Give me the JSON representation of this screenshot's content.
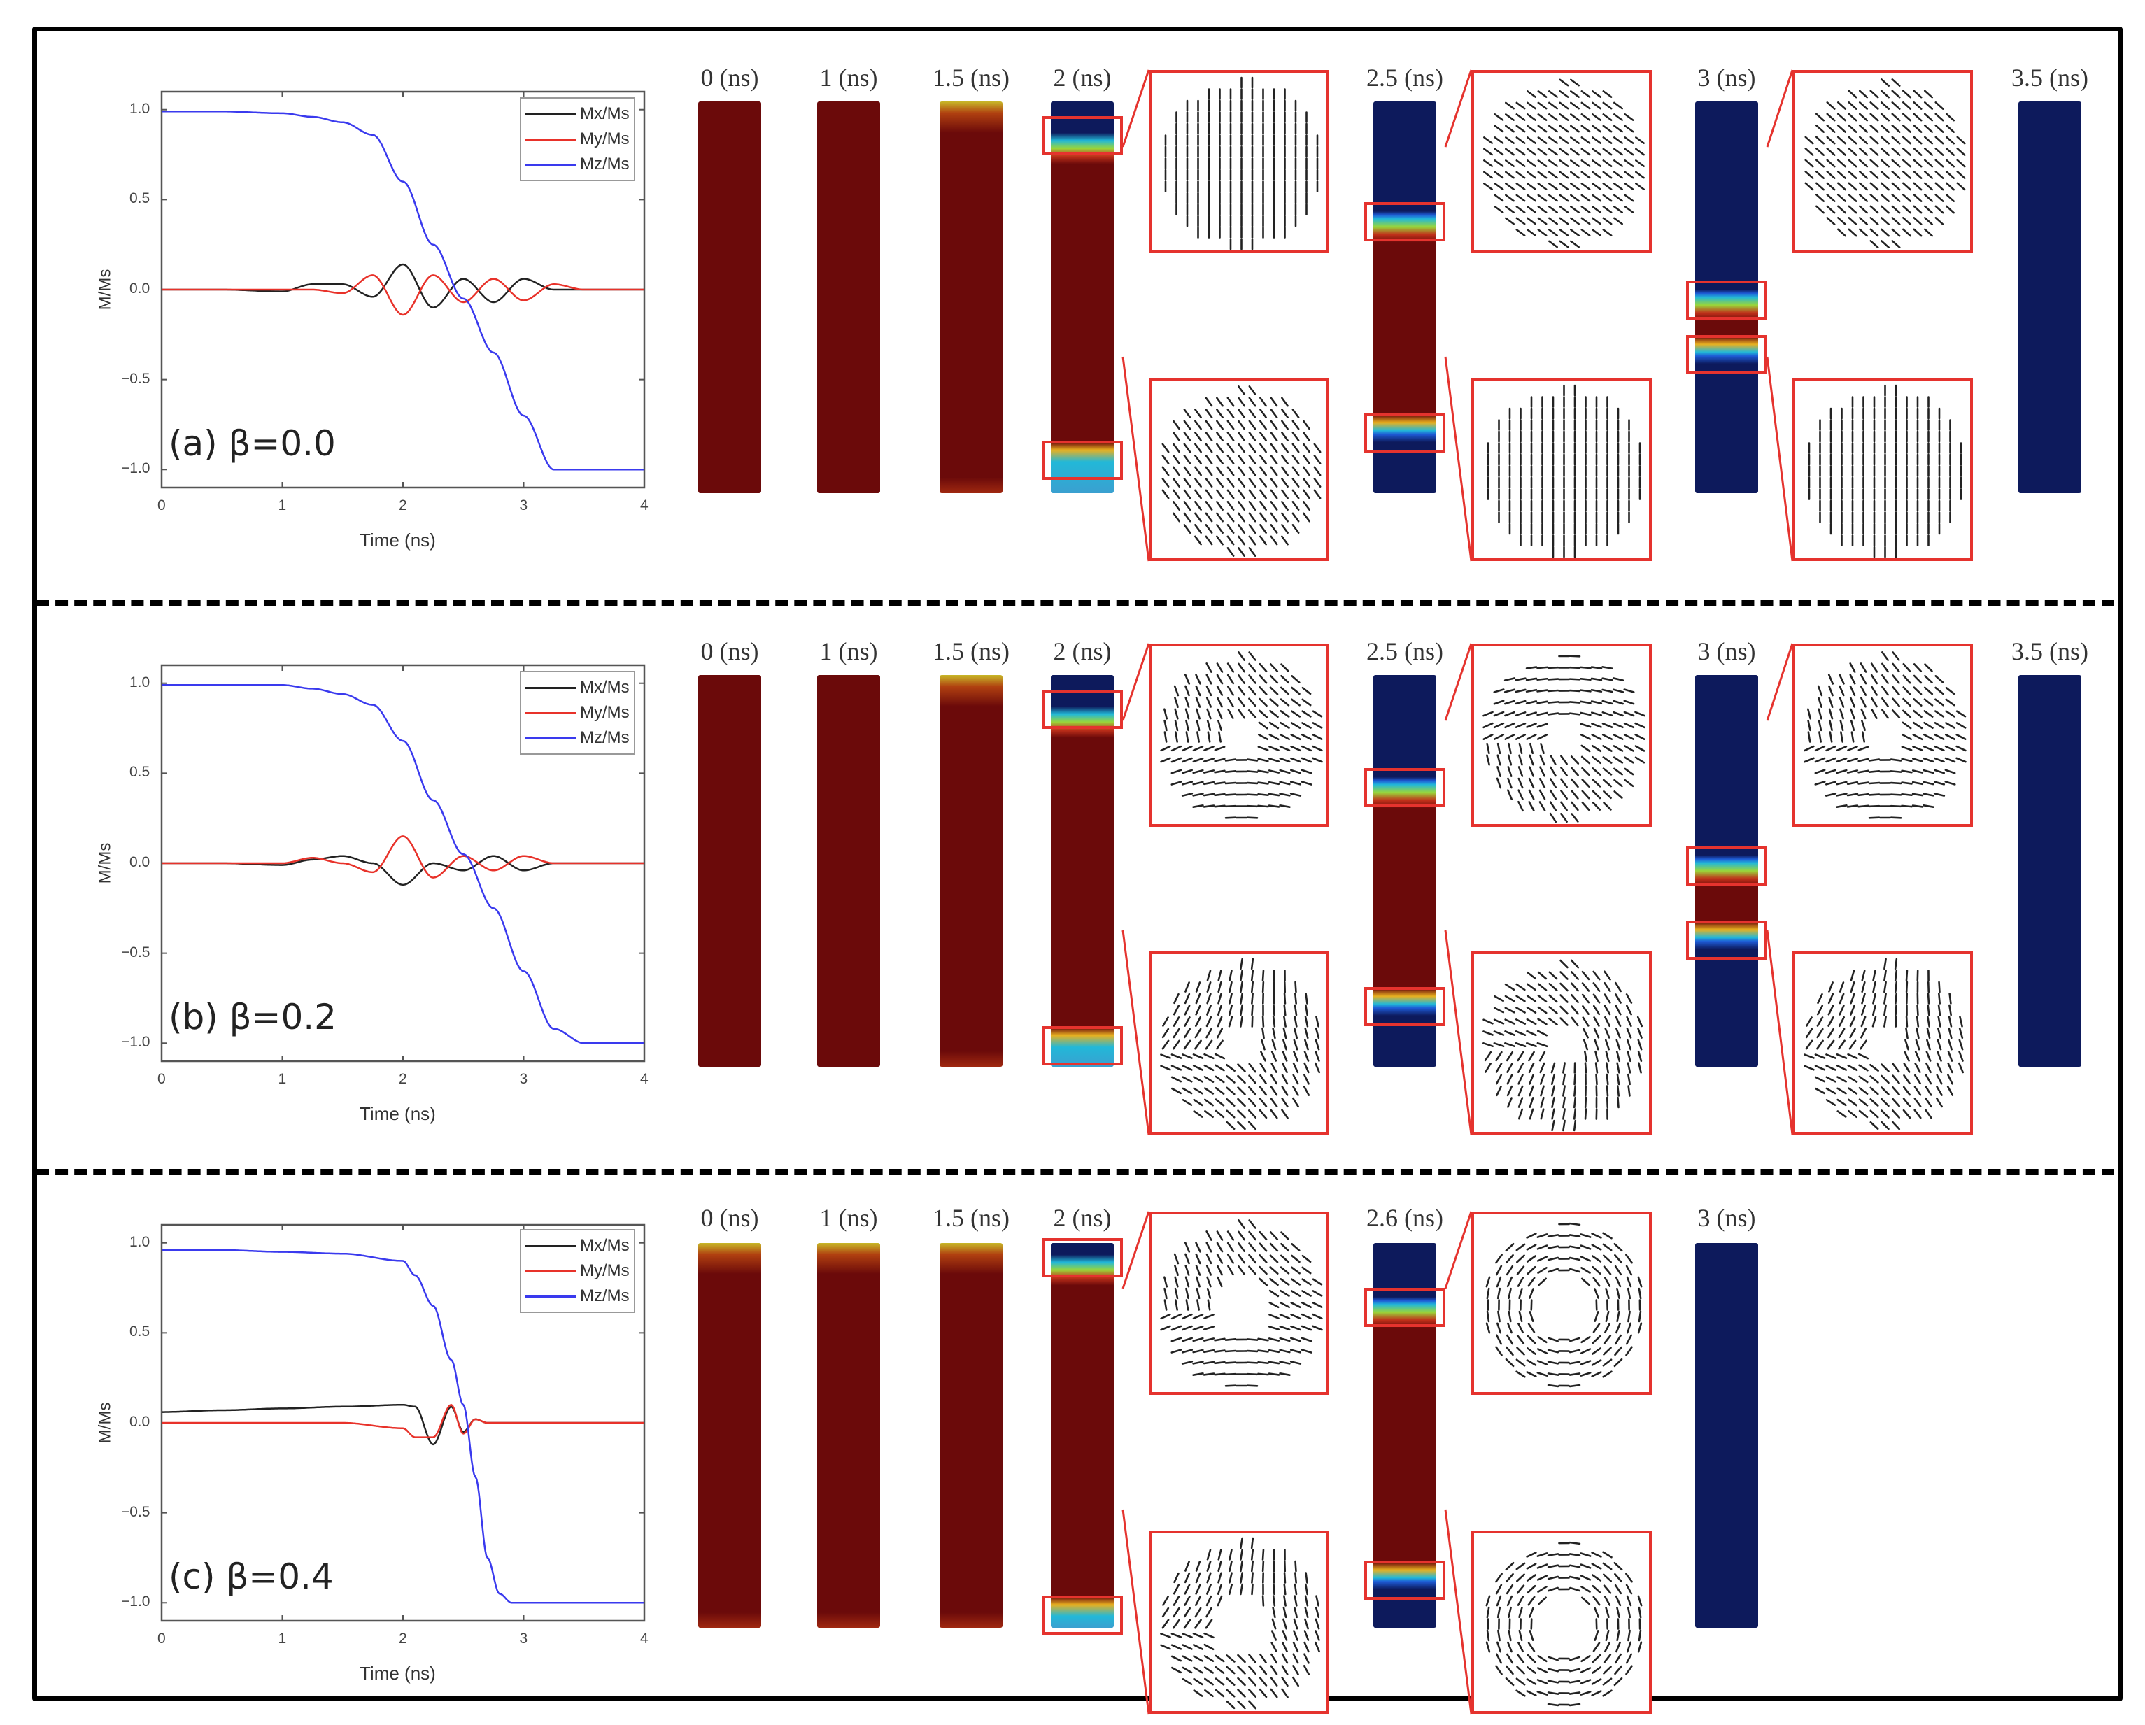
{
  "figure": {
    "colors": {
      "frame": "#000000",
      "inset_border": "#e5332e",
      "wire_red": "#6b0a0a",
      "wire_blue": "#0d1a5c",
      "mx": "#222222",
      "my": "#e8322a",
      "mz": "#3a3aee"
    },
    "rows": [
      {
        "id": "a",
        "panel_label": "(a) β=0.0",
        "ylabel": "M/Ms",
        "xlabel": "Time (ns)",
        "snapshots": [
          "0 (ns)",
          "1 (ns)",
          "1.5 (ns)",
          "2 (ns)",
          "2.5 (ns)",
          "3 (ns)",
          "3.5 (ns)"
        ]
      },
      {
        "id": "b",
        "panel_label": "(b) β=0.2",
        "ylabel": "M/Ms",
        "xlabel": "Time (ns)",
        "snapshots": [
          "0 (ns)",
          "1 (ns)",
          "1.5 (ns)",
          "2 (ns)",
          "2.5 (ns)",
          "3 (ns)",
          "3.5 (ns)"
        ]
      },
      {
        "id": "c",
        "panel_label": "(c) β=0.4",
        "ylabel": "M/Ms",
        "xlabel": "Time (ns)",
        "snapshots": [
          "0 (ns)",
          "1 (ns)",
          "1.5 (ns)",
          "2 (ns)",
          "2.6 (ns)",
          "3 (ns)"
        ]
      }
    ],
    "legend": [
      "Mx/Ms",
      "My/Ms",
      "Mz/Ms"
    ],
    "xticks": [
      "0",
      "1",
      "2",
      "3",
      "4"
    ],
    "yticks": [
      "1.0",
      "0.5",
      "0.0",
      "-0.5",
      "-1.0"
    ]
  },
  "chart_data": [
    {
      "type": "line",
      "title": "(a) β=0.0",
      "xlabel": "Time (ns)",
      "ylabel": "M/Ms",
      "xlim": [
        0,
        4
      ],
      "ylim": [
        -1.1,
        1.1
      ],
      "legend_position": "upper right",
      "x": [
        0,
        0.5,
        1.0,
        1.25,
        1.5,
        1.75,
        2.0,
        2.25,
        2.5,
        2.75,
        3.0,
        3.25,
        3.5,
        4.0
      ],
      "series": [
        {
          "name": "Mx/Ms",
          "values": [
            0,
            0,
            -0.01,
            0.03,
            0.03,
            -0.04,
            0.14,
            -0.1,
            0.06,
            -0.07,
            0.06,
            0.0,
            0,
            0
          ]
        },
        {
          "name": "My/Ms",
          "values": [
            0,
            0,
            0.0,
            0.0,
            -0.02,
            0.08,
            -0.14,
            0.08,
            -0.07,
            0.06,
            -0.06,
            0.03,
            0,
            0
          ]
        },
        {
          "name": "Mz/Ms",
          "values": [
            0.99,
            0.99,
            0.98,
            0.96,
            0.93,
            0.86,
            0.6,
            0.25,
            -0.05,
            -0.35,
            -0.7,
            -1.0,
            -1.0,
            -1.0
          ]
        }
      ]
    },
    {
      "type": "line",
      "title": "(b) β=0.2",
      "xlabel": "Time (ns)",
      "ylabel": "M/Ms",
      "xlim": [
        0,
        4
      ],
      "ylim": [
        -1.1,
        1.1
      ],
      "legend_position": "upper right",
      "x": [
        0,
        0.5,
        1.0,
        1.25,
        1.5,
        1.75,
        2.0,
        2.25,
        2.5,
        2.75,
        3.0,
        3.25,
        3.5,
        4.0
      ],
      "series": [
        {
          "name": "Mx/Ms",
          "values": [
            0,
            0,
            -0.01,
            0.02,
            0.04,
            0.0,
            -0.12,
            0.0,
            -0.04,
            0.04,
            -0.04,
            0.0,
            0,
            0
          ]
        },
        {
          "name": "My/Ms",
          "values": [
            0,
            0,
            0.0,
            0.03,
            0.0,
            -0.05,
            0.15,
            -0.08,
            0.04,
            -0.04,
            0.04,
            0.0,
            0,
            0
          ]
        },
        {
          "name": "Mz/Ms",
          "values": [
            0.99,
            0.99,
            0.99,
            0.97,
            0.94,
            0.88,
            0.68,
            0.35,
            0.05,
            -0.25,
            -0.6,
            -0.92,
            -1.0,
            -1.0
          ]
        }
      ]
    },
    {
      "type": "line",
      "title": "(c) β=0.4",
      "xlabel": "Time (ns)",
      "ylabel": "M/Ms",
      "xlim": [
        0,
        4
      ],
      "ylim": [
        -1.1,
        1.1
      ],
      "legend_position": "upper right",
      "x": [
        0,
        0.5,
        1.0,
        1.5,
        2.0,
        2.1,
        2.25,
        2.4,
        2.5,
        2.6,
        2.7,
        2.8,
        2.9,
        3.0,
        4.0
      ],
      "series": [
        {
          "name": "Mx/Ms",
          "values": [
            0.06,
            0.07,
            0.08,
            0.09,
            0.1,
            0.09,
            -0.12,
            0.09,
            -0.05,
            0.02,
            0.0,
            0.0,
            0.0,
            0.0,
            0.0
          ]
        },
        {
          "name": "My/Ms",
          "values": [
            0,
            0,
            0,
            0,
            -0.03,
            -0.08,
            -0.08,
            0.1,
            -0.06,
            0.02,
            0.0,
            0.0,
            0.0,
            0.0,
            0.0
          ]
        },
        {
          "name": "Mz/Ms",
          "values": [
            0.96,
            0.96,
            0.95,
            0.94,
            0.9,
            0.82,
            0.65,
            0.35,
            0.1,
            -0.3,
            -0.75,
            -0.95,
            -1.0,
            -1.0,
            -1.0
          ]
        }
      ]
    }
  ]
}
